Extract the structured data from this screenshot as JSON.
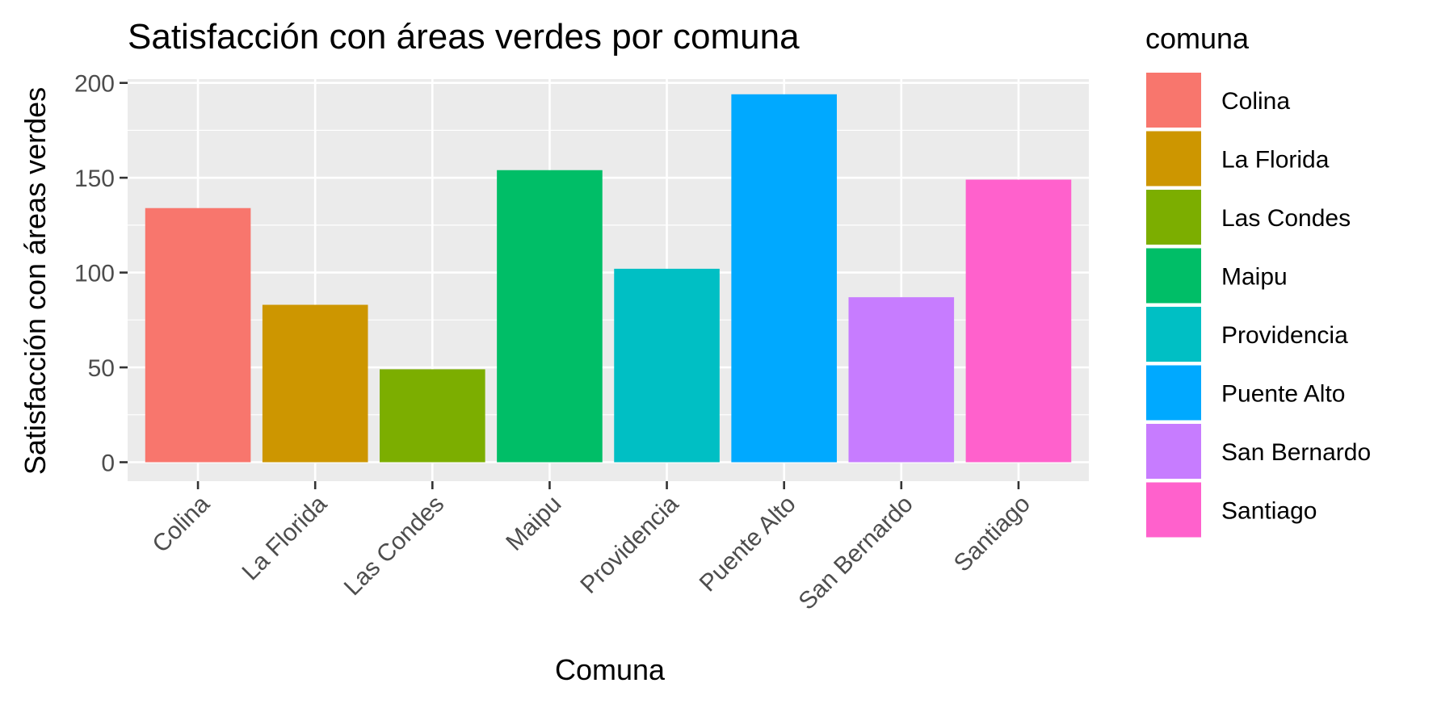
{
  "chart_data": {
    "type": "bar",
    "title": "Satisfacción con áreas verdes por comuna",
    "xlabel": "Comuna",
    "ylabel": "Satisfacción con áreas verdes",
    "categories": [
      "Colina",
      "La Florida",
      "Las Condes",
      "Maipu",
      "Providencia",
      "Puente Alto",
      "San Bernardo",
      "Santiago"
    ],
    "values": [
      134,
      83,
      49,
      154,
      102,
      194,
      87,
      149
    ],
    "colors": [
      "#F8766D",
      "#CD9600",
      "#7CAE00",
      "#00BE67",
      "#00BFC4",
      "#00A9FF",
      "#C77CFF",
      "#FF61CC"
    ],
    "ylim": [
      -10,
      202
    ],
    "yticks": [
      0,
      50,
      100,
      150,
      200
    ],
    "ytick_labels": [
      "0",
      "50",
      "100",
      "150",
      "200"
    ],
    "grid": true,
    "legend": {
      "title": "comuna",
      "position": "right",
      "entries": [
        "Colina",
        "La Florida",
        "Las Condes",
        "Maipu",
        "Providencia",
        "Puente Alto",
        "San Bernardo",
        "Santiago"
      ]
    },
    "panel_background": "#EBEBEB",
    "grid_color": "#FFFFFF"
  }
}
